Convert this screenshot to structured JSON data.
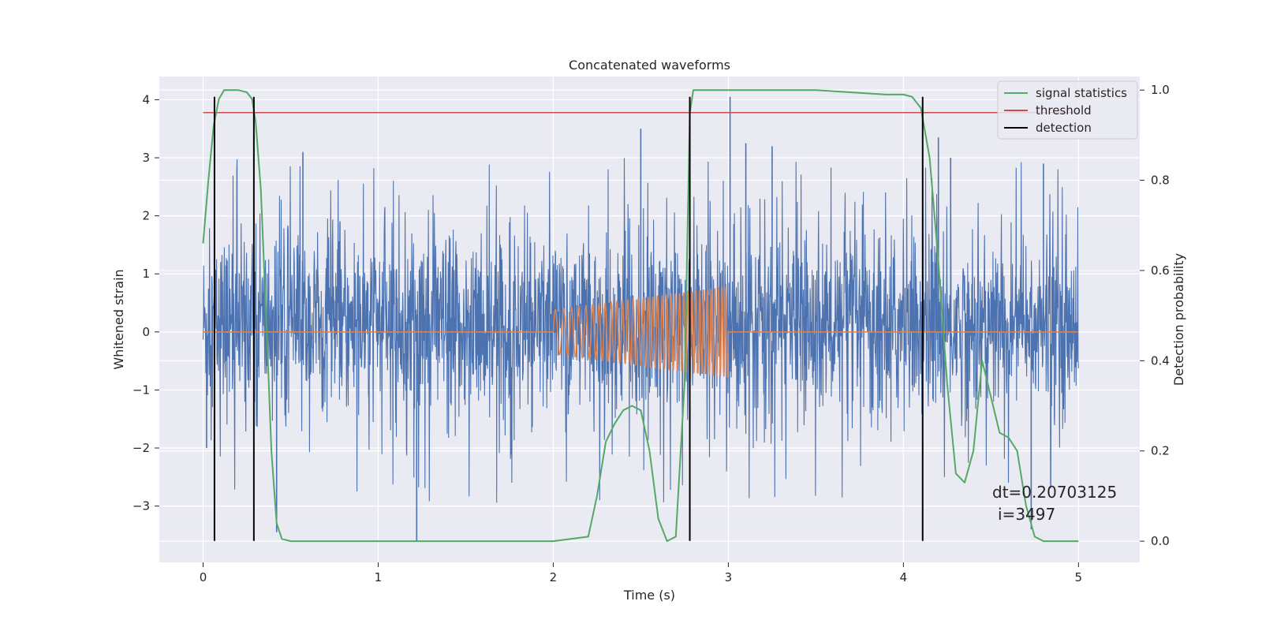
{
  "chart_data": {
    "type": "line",
    "title": "Concatenated waveforms",
    "xlabel": "Time (s)",
    "ylabel": "Whitened strain",
    "ylabel_right": "Detection probability",
    "xlim": [
      -0.25,
      5.35
    ],
    "ylim": [
      -3.97,
      4.4
    ],
    "ylim_right": [
      -0.047,
      1.03
    ],
    "xticks": [
      0,
      1,
      2,
      3,
      4,
      5
    ],
    "xtick_labels": [
      "0",
      "1",
      "2",
      "3",
      "4",
      "5"
    ],
    "yticks": [
      4,
      3,
      2,
      1,
      0,
      -1,
      -2,
      -3
    ],
    "ytick_labels": [
      "4",
      "3",
      "2",
      "1",
      "0",
      "−1",
      "−2",
      "−3"
    ],
    "yticks_right": [
      1.0,
      0.8,
      0.6,
      0.4,
      0.2,
      0.0
    ],
    "ytick_labels_right": [
      "1.0",
      "0.8",
      "0.6",
      "0.4",
      "0.2",
      "0.0"
    ],
    "grid": true,
    "legend_position": "top-right",
    "colors": {
      "strain": "#4c72b0",
      "injection": "#dd8452",
      "signal_statistics": "#55a868",
      "threshold": "#c44e52",
      "detection": "#000000",
      "background": "#eaeaf2",
      "grid": "#ffffff"
    },
    "series": [
      {
        "name": "signal statistics",
        "axis": "right",
        "x": [
          0.0,
          0.03,
          0.06,
          0.09,
          0.12,
          0.15,
          0.2,
          0.25,
          0.28,
          0.3,
          0.33,
          0.36,
          0.39,
          0.42,
          0.45,
          0.5,
          1.0,
          1.5,
          2.0,
          2.2,
          2.25,
          2.3,
          2.35,
          2.4,
          2.45,
          2.5,
          2.55,
          2.6,
          2.65,
          2.7,
          2.75,
          2.78,
          2.8,
          2.85,
          2.9,
          3.0,
          3.5,
          3.9,
          4.0,
          4.05,
          4.1,
          4.15,
          4.2,
          4.25,
          4.3,
          4.35,
          4.4,
          4.45,
          4.5,
          4.55,
          4.6,
          4.65,
          4.7,
          4.75,
          4.8,
          5.0
        ],
        "y": [
          0.66,
          0.8,
          0.92,
          0.98,
          1.0,
          1.0,
          1.0,
          0.995,
          0.98,
          0.93,
          0.78,
          0.5,
          0.2,
          0.04,
          0.005,
          0.0,
          0.0,
          0.0,
          0.0,
          0.01,
          0.1,
          0.22,
          0.26,
          0.29,
          0.3,
          0.29,
          0.2,
          0.05,
          0.0,
          0.01,
          0.35,
          0.95,
          1.0,
          1.0,
          1.0,
          1.0,
          1.0,
          0.99,
          0.99,
          0.985,
          0.96,
          0.85,
          0.62,
          0.35,
          0.15,
          0.13,
          0.2,
          0.4,
          0.32,
          0.24,
          0.23,
          0.2,
          0.08,
          0.01,
          0.0,
          0.0
        ]
      },
      {
        "name": "threshold",
        "axis": "right",
        "x": [
          0.0,
          5.0
        ],
        "y": [
          0.95,
          0.95
        ]
      },
      {
        "name": "detection",
        "axis": "left",
        "type": "vlines",
        "x": [
          0.065,
          0.29,
          2.78,
          4.11
        ],
        "ymin": -3.6,
        "ymax": 4.05
      }
    ],
    "strain": {
      "x_range": [
        0.0,
        5.0
      ],
      "typical_band": [
        -1.0,
        1.3
      ],
      "spikes": [
        {
          "x": 0.42,
          "y": -3.45
        },
        {
          "x": 0.57,
          "y": 3.1
        },
        {
          "x": 1.22,
          "y": -3.6
        },
        {
          "x": 2.5,
          "y": 3.5
        },
        {
          "x": 3.01,
          "y": 4.05
        },
        {
          "x": 3.1,
          "y": 3.25
        },
        {
          "x": 3.25,
          "y": 3.2
        },
        {
          "x": 4.2,
          "y": 3.35
        },
        {
          "x": 4.27,
          "y": 3.0
        },
        {
          "x": 4.8,
          "y": 2.9
        },
        {
          "x": 4.73,
          "y": -3.4
        },
        {
          "x": 0.02,
          "y": -2.0
        }
      ]
    },
    "injection": {
      "start": 2.0,
      "end": 3.0,
      "amp_start": 0.38,
      "amp_end": 0.78,
      "freq_start": 20,
      "freq_end": 50
    },
    "annotations": [
      "dt=0.20703125",
      "i=3497"
    ]
  }
}
